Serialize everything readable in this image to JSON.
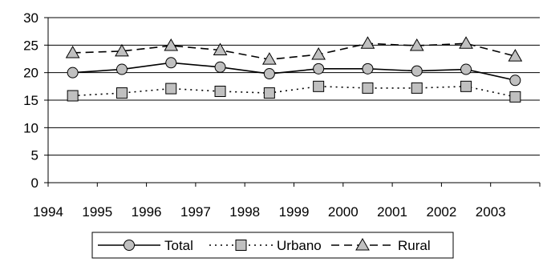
{
  "chart_data": {
    "type": "line",
    "x": [
      "1994",
      "1995",
      "1996",
      "1997",
      "1998",
      "1999",
      "2000",
      "2001",
      "2002",
      "2003"
    ],
    "ylim": [
      0,
      30
    ],
    "yticks": [
      "0",
      "5",
      "10",
      "15",
      "20",
      "25",
      "30"
    ],
    "grid": true,
    "legend_position": "bottom",
    "series": [
      {
        "name": "Total",
        "marker": "circle",
        "line": "solid",
        "values": [
          20.0,
          20.6,
          21.8,
          21.0,
          19.8,
          20.7,
          20.7,
          20.3,
          20.6,
          18.6
        ]
      },
      {
        "name": "Urbano",
        "marker": "square",
        "line": "dotted",
        "values": [
          15.8,
          16.3,
          17.1,
          16.6,
          16.3,
          17.5,
          17.2,
          17.2,
          17.5,
          15.6
        ]
      },
      {
        "name": "Rural",
        "marker": "triangle",
        "line": "dashed",
        "values": [
          23.6,
          23.9,
          24.9,
          24.1,
          22.4,
          23.3,
          25.3,
          24.9,
          25.3,
          23.0
        ]
      }
    ],
    "colors": {
      "marker_fill": "#c0c0c0",
      "line": "#000000",
      "grid": "#000000"
    }
  }
}
